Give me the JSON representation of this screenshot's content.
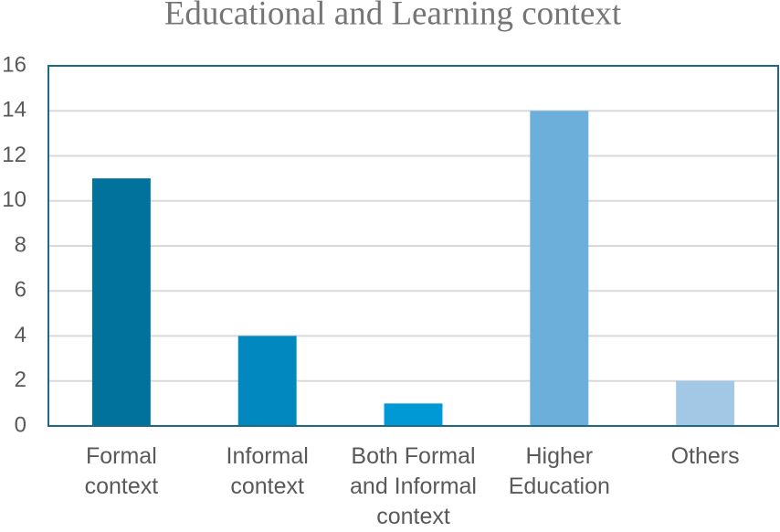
{
  "chart_data": {
    "type": "bar",
    "title": "Educational and Learning context",
    "categories": [
      "Formal context",
      "Informal context",
      "Both Formal and Informal context",
      "Higher Education",
      "Others"
    ],
    "values": [
      11,
      4,
      1,
      14,
      2
    ],
    "colors": [
      "#00729c",
      "#0088bf",
      "#0099d5",
      "#6cafdb",
      "#a3c8e5"
    ],
    "ylim": [
      0,
      16
    ],
    "yticks": [
      0,
      2,
      4,
      6,
      8,
      10,
      12,
      14,
      16
    ],
    "grid": true
  }
}
